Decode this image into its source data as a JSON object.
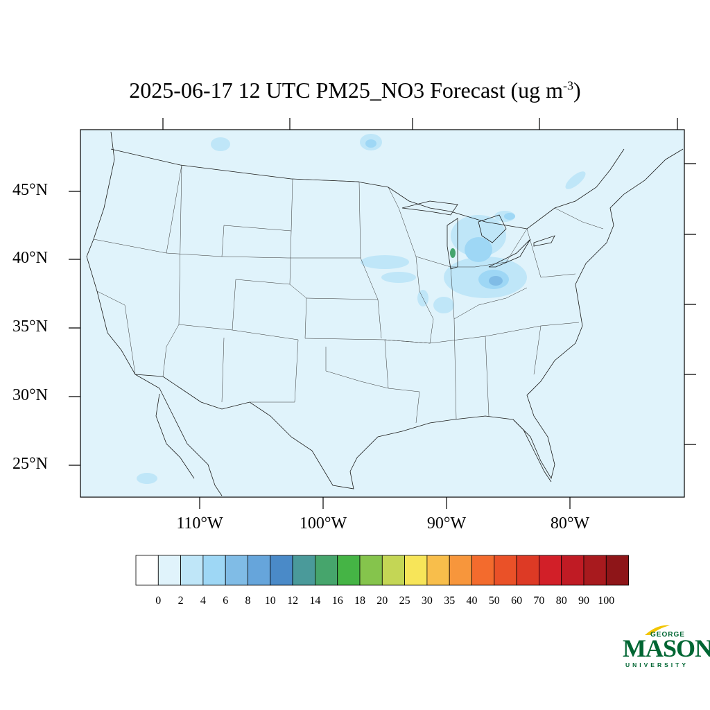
{
  "title": {
    "main": "2025-06-17 12 UTC PM25_NO3 Forecast (ug m",
    "exponent": "-3",
    "close": ")"
  },
  "latitude_labels": [
    "45°N",
    "40°N",
    "35°N",
    "30°N",
    "25°N"
  ],
  "longitude_labels": [
    "110°W",
    "100°W",
    "90°W",
    "80°W"
  ],
  "colorbar": {
    "labels": [
      "0",
      "2",
      "4",
      "6",
      "8",
      "10",
      "12",
      "14",
      "16",
      "18",
      "20",
      "25",
      "30",
      "35",
      "40",
      "50",
      "60",
      "70",
      "80",
      "90",
      "100"
    ],
    "colors": [
      "#ffffff",
      "#e0f3fb",
      "#bfe6f8",
      "#9ed7f5",
      "#80bce6",
      "#66a5db",
      "#4a8ac8",
      "#4a9a9a",
      "#46a56c",
      "#45b445",
      "#85c44c",
      "#c4d655",
      "#f7e559",
      "#f8be4b",
      "#f7963c",
      "#f36b2d",
      "#ea5128",
      "#dd3a25",
      "#d21f28",
      "#c01b24",
      "#a81a1e",
      "#8e1518"
    ]
  },
  "map": {
    "background_color": "#e0f3fb",
    "high_concentration_color": "#46a56c"
  },
  "logo": {
    "top": "GEORGE",
    "main": "MASON",
    "bottom": "UNIVERSITY",
    "color": "#006633"
  }
}
